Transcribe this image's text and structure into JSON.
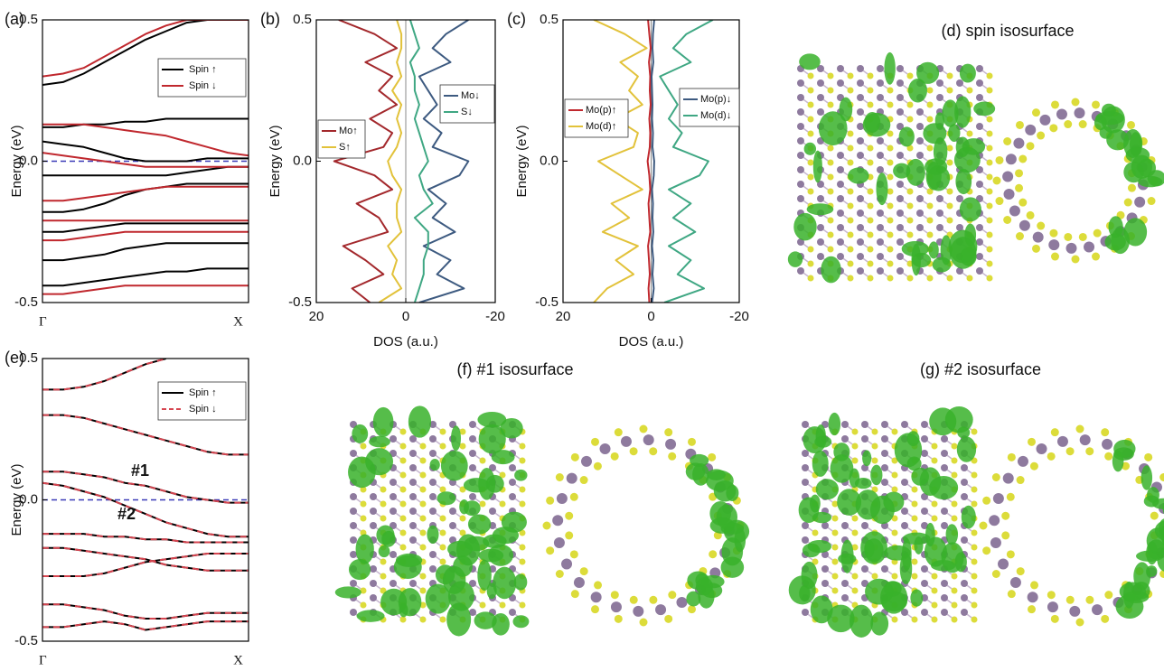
{
  "chart_data": [
    {
      "type": "line",
      "label": "(a)",
      "y_label": "Energy (eV)",
      "x": [
        0,
        0.1,
        0.2,
        0.3,
        0.4,
        0.5,
        0.6,
        0.7,
        0.8,
        0.9,
        1
      ],
      "xlim": [
        0,
        1
      ],
      "xticks": [
        {
          "value": 0,
          "label": "Γ"
        },
        {
          "value": 1,
          "label": "X"
        }
      ],
      "ylim": [
        -0.5,
        0.5
      ],
      "yticks": [
        -0.5,
        {
          "value": 0,
          "label": "0.0"
        },
        0.5
      ],
      "reference_line": 0,
      "reference_color": "#3a3ab8",
      "series": [
        {
          "name": "Spin ↑",
          "color": "#000000",
          "bands": [
            [
              0.27,
              0.28,
              0.31,
              0.35,
              0.39,
              0.43,
              0.46,
              0.49,
              0.5,
              0.5,
              0.5
            ],
            [
              0.12,
              0.12,
              0.13,
              0.13,
              0.14,
              0.14,
              0.15,
              0.15,
              0.15,
              0.15,
              0.15
            ],
            [
              0.07,
              0.06,
              0.05,
              0.03,
              0.01,
              0,
              0,
              0,
              0.01,
              0.01,
              0.01
            ],
            [
              -0.05,
              -0.05,
              -0.05,
              -0.05,
              -0.05,
              -0.05,
              -0.05,
              -0.04,
              -0.03,
              -0.02,
              -0.02
            ],
            [
              -0.18,
              -0.18,
              -0.17,
              -0.15,
              -0.12,
              -0.1,
              -0.09,
              -0.08,
              -0.08,
              -0.08,
              -0.08
            ],
            [
              -0.25,
              -0.25,
              -0.24,
              -0.23,
              -0.22,
              -0.22,
              -0.22,
              -0.22,
              -0.22,
              -0.22,
              -0.22
            ],
            [
              -0.35,
              -0.35,
              -0.34,
              -0.33,
              -0.31,
              -0.3,
              -0.29,
              -0.29,
              -0.29,
              -0.29,
              -0.29
            ],
            [
              -0.44,
              -0.44,
              -0.43,
              -0.42,
              -0.41,
              -0.4,
              -0.39,
              -0.39,
              -0.38,
              -0.38,
              -0.38
            ]
          ]
        },
        {
          "name": "Spin ↓",
          "color": "#c0282e",
          "bands": [
            [
              0.3,
              0.31,
              0.33,
              0.37,
              0.41,
              0.45,
              0.48,
              0.5,
              0.5,
              0.5,
              0.5
            ],
            [
              0.13,
              0.13,
              0.13,
              0.12,
              0.11,
              0.1,
              0.09,
              0.07,
              0.05,
              0.03,
              0.02
            ],
            [
              0.03,
              0.02,
              0.01,
              0,
              -0.01,
              -0.02,
              -0.02,
              -0.02,
              -0.02,
              -0.02,
              -0.02
            ],
            [
              -0.14,
              -0.14,
              -0.13,
              -0.12,
              -0.11,
              -0.1,
              -0.09,
              -0.09,
              -0.09,
              -0.09,
              -0.09
            ],
            [
              -0.21,
              -0.21,
              -0.21,
              -0.21,
              -0.21,
              -0.21,
              -0.21,
              -0.21,
              -0.21,
              -0.21,
              -0.21
            ],
            [
              -0.28,
              -0.28,
              -0.27,
              -0.26,
              -0.25,
              -0.25,
              -0.25,
              -0.25,
              -0.25,
              -0.25,
              -0.25
            ],
            [
              -0.47,
              -0.47,
              -0.46,
              -0.45,
              -0.44,
              -0.44,
              -0.44,
              -0.44,
              -0.44,
              -0.44,
              -0.44
            ]
          ]
        }
      ]
    },
    {
      "type": "line",
      "label": "(b)",
      "y_label": "Energy (eV)",
      "x_label": "DOS (a.u.)",
      "energy": [
        -0.5,
        -0.45,
        -0.4,
        -0.35,
        -0.3,
        -0.25,
        -0.2,
        -0.15,
        -0.1,
        -0.05,
        0,
        0.05,
        0.1,
        0.15,
        0.2,
        0.25,
        0.3,
        0.35,
        0.4,
        0.45,
        0.5
      ],
      "xlim": [
        20,
        -20
      ],
      "xticks": [
        20,
        0,
        -20
      ],
      "ylim": [
        -0.5,
        0.5
      ],
      "yticks": [
        -0.5,
        {
          "value": 0,
          "label": "0.0"
        },
        0.5
      ],
      "reference_line": 0,
      "reference_color": "#888888",
      "series": [
        {
          "name": "Mo↑",
          "color": "#a3282c",
          "values": [
            8,
            12,
            5,
            9,
            14,
            4,
            6,
            11,
            3,
            7,
            16,
            5,
            3,
            8,
            2,
            6,
            3,
            9,
            2,
            7,
            15
          ]
        },
        {
          "name": "S↑",
          "color": "#e2c23a",
          "values": [
            6,
            1,
            3,
            2,
            4,
            1,
            2,
            2,
            1,
            3,
            4,
            2,
            1,
            2,
            1,
            3,
            1,
            2,
            1,
            1,
            2
          ]
        },
        {
          "name": "Mo↓",
          "color": "#3d5a80",
          "values": [
            -3,
            -13,
            -7,
            -10,
            -4,
            -11,
            -6,
            -9,
            -5,
            -12,
            -14,
            -6,
            -8,
            -4,
            -7,
            -5,
            -3,
            -10,
            -6,
            -9,
            -14
          ]
        },
        {
          "name": "S↓",
          "color": "#3fa783",
          "values": [
            -2,
            -3,
            -4,
            -4,
            -5,
            -5,
            -2,
            -6,
            -4,
            -3,
            -5,
            -4,
            -3,
            -2,
            -3,
            -2,
            -2,
            -1,
            -3,
            -2,
            -1
          ]
        }
      ]
    },
    {
      "type": "line",
      "label": "(c)",
      "y_label": "Energy (eV)",
      "x_label": "DOS (a.u.)",
      "energy": [
        -0.5,
        -0.45,
        -0.4,
        -0.35,
        -0.3,
        -0.25,
        -0.2,
        -0.15,
        -0.1,
        -0.05,
        0,
        0.05,
        0.1,
        0.15,
        0.2,
        0.25,
        0.3,
        0.35,
        0.4,
        0.45,
        0.5
      ],
      "xlim": [
        20,
        -20
      ],
      "xticks": [
        20,
        0,
        -20
      ],
      "ylim": [
        -0.5,
        0.5
      ],
      "yticks": [
        -0.5,
        {
          "value": 0,
          "label": "0.0"
        },
        0.5
      ],
      "reference_line": 0,
      "reference_color": "#888888",
      "series": [
        {
          "name": "Mo(p)↑",
          "color": "#c0282e",
          "values": [
            0.4,
            0.6,
            0.3,
            0.5,
            0.7,
            0.2,
            0.4,
            0.6,
            0.2,
            0.4,
            0.8,
            0.3,
            0.2,
            0.4,
            0.1,
            0.3,
            0.2,
            0.5,
            0.1,
            0.4,
            0.7
          ]
        },
        {
          "name": "Mo(d)↑",
          "color": "#e2c23a",
          "values": [
            13,
            10,
            4,
            8,
            3,
            11,
            5,
            9,
            2,
            7,
            12,
            4,
            3,
            8,
            2,
            5,
            3,
            7,
            1,
            6,
            13
          ]
        },
        {
          "name": "Mo(p)↓",
          "color": "#3d5a80",
          "values": [
            -0.2,
            -0.6,
            -0.3,
            -0.5,
            -0.2,
            -0.5,
            -0.3,
            -0.4,
            -0.2,
            -0.6,
            -0.7,
            -0.3,
            -0.4,
            -0.2,
            -0.3,
            -0.2,
            -0.1,
            -0.5,
            -0.3,
            -0.4,
            -0.7
          ]
        },
        {
          "name": "Mo(d)↓",
          "color": "#3fa783",
          "values": [
            -3,
            -12,
            -6,
            -9,
            -4,
            -10,
            -5,
            -9,
            -4,
            -11,
            -13,
            -5,
            -7,
            -4,
            -6,
            -4,
            -2,
            -9,
            -5,
            -8,
            -14
          ]
        }
      ]
    },
    {
      "type": "line",
      "label": "(e)",
      "y_label": "Energy (eV)",
      "x": [
        0,
        0.1,
        0.2,
        0.3,
        0.4,
        0.5,
        0.6,
        0.7,
        0.8,
        0.9,
        1
      ],
      "xlim": [
        0,
        1
      ],
      "xticks": [
        {
          "value": 0,
          "label": "Γ"
        },
        {
          "value": 1,
          "label": "X"
        }
      ],
      "ylim": [
        -0.5,
        0.5
      ],
      "yticks": [
        -0.5,
        {
          "value": 0,
          "label": "0.0"
        },
        0.5
      ],
      "reference_line": 0,
      "reference_color": "#3a3ab8",
      "annotations": [
        "#1",
        "#2"
      ],
      "series": [
        {
          "name": "Spin ↑",
          "color": "#000000",
          "bands": [
            [
              0.39,
              0.39,
              0.4,
              0.42,
              0.45,
              0.48,
              0.5,
              null,
              null,
              null,
              null
            ],
            [
              0.3,
              0.3,
              0.29,
              0.27,
              0.25,
              0.23,
              0.21,
              0.19,
              0.17,
              0.16,
              0.16
            ],
            [
              0.1,
              0.1,
              0.09,
              0.08,
              0.06,
              0.05,
              0.03,
              0.01,
              0,
              -0.01,
              -0.01
            ],
            [
              0.06,
              0.05,
              0.03,
              0.01,
              -0.02,
              -0.05,
              -0.08,
              -0.1,
              -0.12,
              -0.13,
              -0.13
            ],
            [
              -0.12,
              -0.12,
              -0.12,
              -0.13,
              -0.13,
              -0.14,
              -0.14,
              -0.15,
              -0.15,
              -0.15,
              -0.15
            ],
            [
              -0.17,
              -0.17,
              -0.18,
              -0.19,
              -0.2,
              -0.21,
              -0.23,
              -0.24,
              -0.25,
              -0.25,
              -0.25
            ],
            [
              -0.27,
              -0.27,
              -0.27,
              -0.26,
              -0.24,
              -0.22,
              -0.21,
              -0.2,
              -0.19,
              -0.19,
              -0.19
            ],
            [
              -0.37,
              -0.37,
              -0.38,
              -0.39,
              -0.41,
              -0.42,
              -0.42,
              -0.41,
              -0.4,
              -0.4,
              -0.4
            ],
            [
              -0.45,
              -0.45,
              -0.44,
              -0.43,
              -0.44,
              -0.46,
              -0.45,
              -0.44,
              -0.43,
              -0.43,
              -0.43
            ]
          ]
        },
        {
          "name": "Spin ↓",
          "color": "#d64550",
          "dash": true,
          "bands": [
            [
              0.39,
              0.39,
              0.4,
              0.42,
              0.45,
              0.48,
              0.5,
              null,
              null,
              null,
              null
            ],
            [
              0.3,
              0.3,
              0.29,
              0.27,
              0.25,
              0.23,
              0.21,
              0.19,
              0.17,
              0.16,
              0.16
            ],
            [
              0.1,
              0.1,
              0.09,
              0.08,
              0.06,
              0.05,
              0.03,
              0.01,
              0,
              -0.01,
              -0.01
            ],
            [
              0.06,
              0.05,
              0.03,
              0.01,
              -0.02,
              -0.05,
              -0.08,
              -0.1,
              -0.12,
              -0.13,
              -0.13
            ],
            [
              -0.12,
              -0.12,
              -0.12,
              -0.13,
              -0.13,
              -0.14,
              -0.14,
              -0.15,
              -0.15,
              -0.15,
              -0.15
            ],
            [
              -0.17,
              -0.17,
              -0.18,
              -0.19,
              -0.2,
              -0.21,
              -0.23,
              -0.24,
              -0.25,
              -0.25,
              -0.25
            ],
            [
              -0.27,
              -0.27,
              -0.27,
              -0.26,
              -0.24,
              -0.22,
              -0.21,
              -0.2,
              -0.19,
              -0.19,
              -0.19
            ],
            [
              -0.37,
              -0.37,
              -0.38,
              -0.39,
              -0.41,
              -0.42,
              -0.42,
              -0.41,
              -0.4,
              -0.4,
              -0.4
            ],
            [
              -0.45,
              -0.45,
              -0.44,
              -0.43,
              -0.44,
              -0.46,
              -0.45,
              -0.44,
              -0.43,
              -0.43,
              -0.43
            ]
          ]
        }
      ]
    }
  ],
  "images": [
    {
      "title": "(d) spin isosurface"
    },
    {
      "title": "(f) #1 isosurface"
    },
    {
      "title": "(g) #2 isosurface"
    }
  ]
}
